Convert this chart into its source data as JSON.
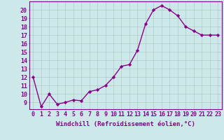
{
  "x": [
    0,
    1,
    2,
    3,
    4,
    5,
    6,
    7,
    8,
    9,
    10,
    11,
    12,
    13,
    14,
    15,
    16,
    17,
    18,
    19,
    20,
    21,
    22,
    23
  ],
  "y": [
    12,
    8.5,
    10,
    8.8,
    9,
    9.3,
    9.2,
    10.3,
    10.5,
    11,
    12,
    13.3,
    13.5,
    15.2,
    18.3,
    20,
    20.5,
    20,
    19.3,
    18,
    17.5,
    17,
    17,
    17
  ],
  "line_color": "#8B008B",
  "marker": "D",
  "marker_size": 2.2,
  "bg_color": "#cce8e8",
  "grid_color": "#b0c8c8",
  "xlabel": "Windchill (Refroidissement éolien,°C)",
  "xlabel_color": "#8B008B",
  "xlabel_fontsize": 6.5,
  "xtick_labels": [
    "0",
    "1",
    "2",
    "3",
    "4",
    "5",
    "6",
    "7",
    "8",
    "9",
    "10",
    "11",
    "12",
    "13",
    "14",
    "15",
    "16",
    "17",
    "18",
    "19",
    "20",
    "21",
    "22",
    "23"
  ],
  "ytick_labels": [
    "9",
    "10",
    "11",
    "12",
    "13",
    "14",
    "15",
    "16",
    "17",
    "18",
    "19",
    "20"
  ],
  "ylim": [
    8.2,
    21.0
  ],
  "xlim": [
    -0.5,
    23.5
  ],
  "ytick_vals": [
    9,
    10,
    11,
    12,
    13,
    14,
    15,
    16,
    17,
    18,
    19,
    20
  ],
  "tick_color": "#8B008B",
  "tick_fontsize": 6,
  "spine_color": "#8B008B",
  "linewidth": 1.0
}
